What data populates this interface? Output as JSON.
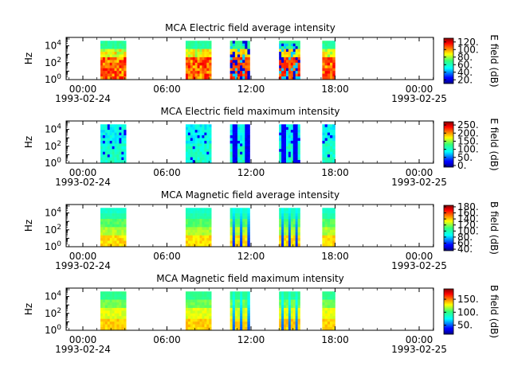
{
  "chart_data": [
    {
      "type": "heatmap",
      "title": "MCA  Electric field average intensity",
      "ylabel": "Hz",
      "yscale": "log",
      "ylim": [
        1,
        100000
      ],
      "y_ticks": [
        "10^0",
        "10^2",
        "10^4"
      ],
      "x_ticks": [
        "00:00",
        "06:00",
        "12:00",
        "18:00",
        "00:00"
      ],
      "x_dates": [
        "1993-02-24",
        "1993-02-25"
      ],
      "colorbar": {
        "label": "E field (dB)",
        "ticks": [
          "20.",
          "40.",
          "60.",
          "80.",
          "100.",
          "120."
        ],
        "range": [
          10,
          130
        ]
      },
      "data_intervals": [
        [
          "01:15",
          "03:05"
        ],
        [
          "07:20",
          "09:10"
        ],
        [
          "10:30",
          "11:55"
        ],
        [
          "14:00",
          "15:30"
        ],
        [
          "17:05",
          "18:00"
        ]
      ],
      "character": "avg_e"
    },
    {
      "type": "heatmap",
      "title": "MCA  Electric field maximum intensity",
      "ylabel": "Hz",
      "yscale": "log",
      "ylim": [
        1,
        100000
      ],
      "y_ticks": [
        "10^0",
        "10^2",
        "10^4"
      ],
      "x_ticks": [
        "00:00",
        "06:00",
        "12:00",
        "18:00",
        "00:00"
      ],
      "x_dates": [
        "1993-02-24",
        "1993-02-25"
      ],
      "colorbar": {
        "label": "E field (dB)",
        "ticks": [
          "0.",
          "50.",
          "100.",
          "150.",
          "200.",
          "250."
        ],
        "range": [
          -10,
          270
        ]
      },
      "data_intervals": [
        [
          "01:15",
          "03:05"
        ],
        [
          "07:20",
          "09:10"
        ],
        [
          "10:30",
          "11:55"
        ],
        [
          "14:00",
          "15:30"
        ],
        [
          "17:05",
          "18:00"
        ]
      ],
      "character": "max_e"
    },
    {
      "type": "heatmap",
      "title": "MCA  Magnetic field average intensity",
      "ylabel": "Hz",
      "yscale": "log",
      "ylim": [
        1,
        100000
      ],
      "y_ticks": [
        "10^0",
        "10^2",
        "10^4"
      ],
      "x_ticks": [
        "00:00",
        "06:00",
        "12:00",
        "18:00",
        "00:00"
      ],
      "x_dates": [
        "1993-02-24",
        "1993-02-25"
      ],
      "colorbar": {
        "label": "B field (dB)",
        "ticks": [
          "40.",
          "60.",
          "80.",
          "100.",
          "120.",
          "140.",
          "160.",
          "180."
        ],
        "range": [
          35,
          185
        ]
      },
      "data_intervals": [
        [
          "01:15",
          "03:05"
        ],
        [
          "07:20",
          "09:10"
        ],
        [
          "10:30",
          "11:55"
        ],
        [
          "14:00",
          "15:30"
        ],
        [
          "17:05",
          "18:00"
        ]
      ],
      "character": "avg_b"
    },
    {
      "type": "heatmap",
      "title": "MCA  Magnetic field maximum intensity",
      "ylabel": "Hz",
      "yscale": "log",
      "ylim": [
        1,
        100000
      ],
      "y_ticks": [
        "10^0",
        "10^2",
        "10^4"
      ],
      "x_ticks": [
        "00:00",
        "06:00",
        "12:00",
        "18:00",
        "00:00"
      ],
      "x_dates": [
        "1993-02-24",
        "1993-02-25"
      ],
      "colorbar": {
        "label": "B field (dB)",
        "ticks": [
          "50.",
          "100.",
          "150."
        ],
        "range": [
          15,
          190
        ]
      },
      "data_intervals": [
        [
          "01:15",
          "03:05"
        ],
        [
          "07:20",
          "09:10"
        ],
        [
          "10:30",
          "11:55"
        ],
        [
          "14:00",
          "15:30"
        ],
        [
          "17:05",
          "18:00"
        ]
      ],
      "character": "max_b"
    }
  ]
}
